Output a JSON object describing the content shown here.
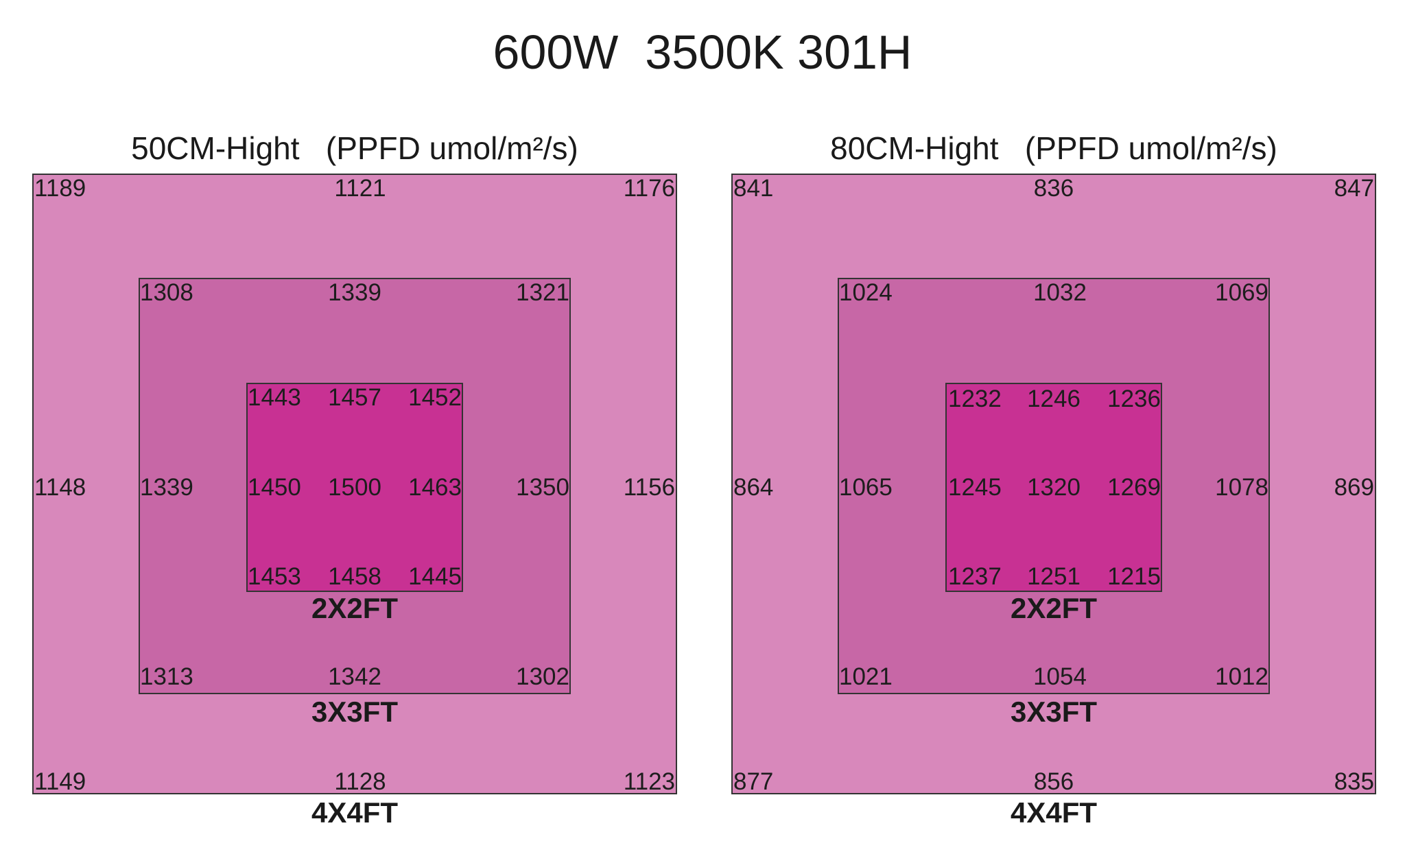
{
  "title": "600W  3500K 301H",
  "panels": [
    {
      "title": "50CM-Hight   (PPFD umol/m²/s)",
      "outer": {
        "label": "4X4FT",
        "top": [
          "1189",
          "1121",
          "1176"
        ],
        "mid": [
          "1148",
          "1156"
        ],
        "bottom": [
          "1149",
          "1128",
          "1123"
        ]
      },
      "middle": {
        "label": "3X3FT",
        "top": [
          "1308",
          "1339",
          "1321"
        ],
        "mid": [
          "1339",
          "1350"
        ],
        "bottom": [
          "1313",
          "1342",
          "1302"
        ]
      },
      "inner": {
        "label": "2X2FT",
        "top": [
          "1443",
          "1457",
          "1452"
        ],
        "mid": [
          "1450",
          "1500",
          "1463"
        ],
        "bottom": [
          "1453",
          "1458",
          "1445"
        ]
      }
    },
    {
      "title": "80CM-Hight   (PPFD umol/m²/s)",
      "outer": {
        "label": "4X4FT",
        "top": [
          "841",
          "836",
          "847"
        ],
        "mid": [
          "864",
          "869"
        ],
        "bottom": [
          "877",
          "856",
          "835"
        ]
      },
      "middle": {
        "label": "3X3FT",
        "top": [
          "1024",
          "1032",
          "1069"
        ],
        "mid": [
          "1065",
          "1078"
        ],
        "bottom": [
          "1021",
          "1054",
          "1012"
        ]
      },
      "inner": {
        "label": "2X2FT",
        "top": [
          "1232",
          "1246",
          "1236"
        ],
        "mid": [
          "1245",
          "1320",
          "1269"
        ],
        "bottom": [
          "1237",
          "1251",
          "1215"
        ]
      }
    }
  ],
  "colors": {
    "outer": "#d888bb",
    "middle": "#c767a6",
    "inner": "#c83193"
  }
}
